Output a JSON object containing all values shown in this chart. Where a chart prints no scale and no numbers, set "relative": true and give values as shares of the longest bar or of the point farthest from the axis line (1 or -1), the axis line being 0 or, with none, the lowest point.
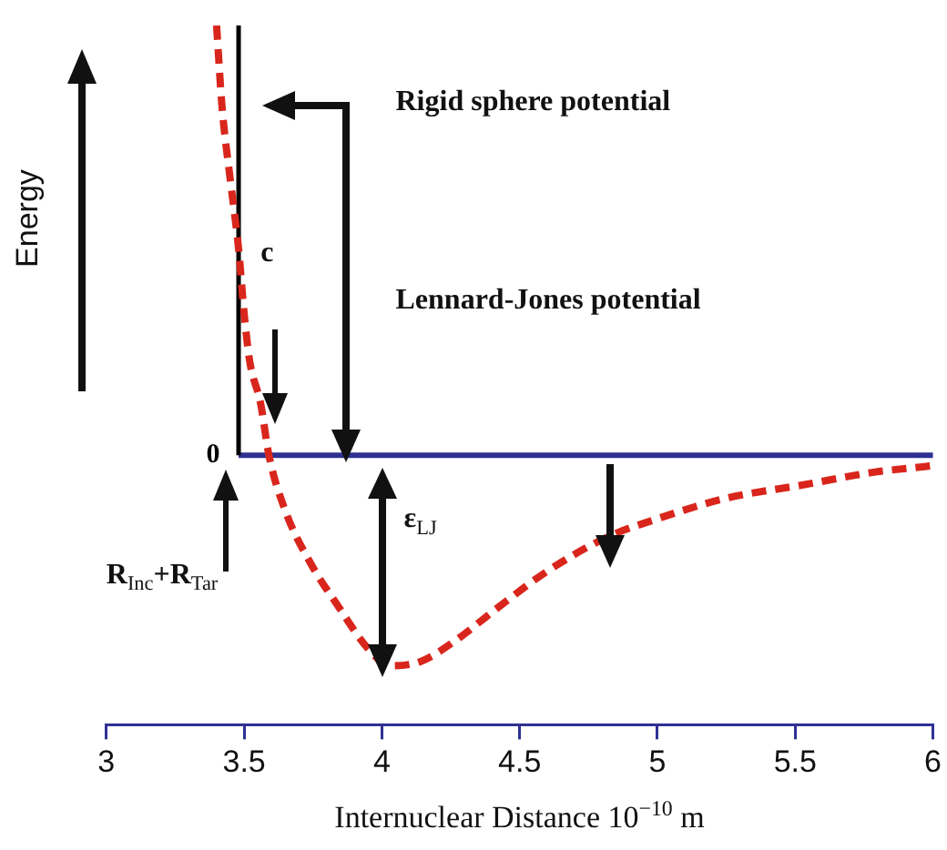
{
  "chart_data": {
    "type": "line",
    "relative": true,
    "xlabel": "Internuclear Distance 10$^{−10}$ m",
    "ylabel": "Energy",
    "xlim": [
      3,
      6
    ],
    "xticks": [
      3,
      3.5,
      4,
      4.5,
      5,
      5.5,
      6
    ],
    "grid": false,
    "legend": false,
    "marker": "none",
    "ref_lines": [
      {
        "axis": "y",
        "value": 0,
        "label": "0",
        "color": "#2e3192"
      }
    ],
    "series": [
      {
        "color": "#d9261c",
        "line_style": "dashed",
        "x": [
          3.4,
          3.42,
          3.45,
          3.48,
          3.5,
          3.52,
          3.56,
          3.59,
          3.65,
          3.74,
          3.84,
          3.95,
          4.03,
          4.14,
          4.27,
          4.41,
          4.6,
          4.82,
          4.99,
          5.25,
          5.52,
          5.78,
          5.99
        ],
        "values": [
          1,
          0.81,
          0.64,
          0.48,
          0.33,
          0.22,
          0.12,
          0,
          -0.13,
          -0.25,
          -0.35,
          -0.45,
          -0.49,
          -0.48,
          -0.43,
          -0.36,
          -0.27,
          -0.19,
          -0.15,
          -0.1,
          -0.07,
          -0.04,
          -0.025
        ]
      },
      {
        "color": "#000000",
        "line_style": "solid",
        "x": [
          3.48,
          3.48
        ],
        "values": [
          0,
          1
        ]
      }
    ],
    "annotations": [
      "Rigid sphere potential",
      "Lennard-Jones potential",
      "c",
      "ε$_{LJ}$",
      "R$_{Inc}$+R$_{Tar}$"
    ]
  }
}
